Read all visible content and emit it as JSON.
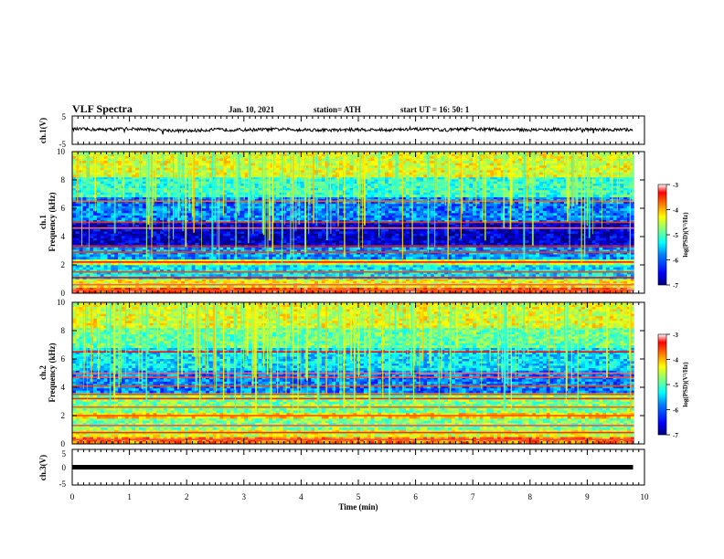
{
  "header": {
    "title": "VLF Spectra",
    "date": "Jan. 10, 2021",
    "station": "station= ATH",
    "start": "start  UT =   16: 50: 1"
  },
  "colors": {
    "colormap": [
      "#00007f",
      "#0000ff",
      "#0080ff",
      "#00ffff",
      "#80ff80",
      "#ffff00",
      "#ff8000",
      "#ff0000",
      "#ffffff"
    ],
    "trace": "#000000",
    "background": "#ffffff"
  },
  "chart_data": [
    {
      "type": "line",
      "panel": "ch1-waveform",
      "ylabel": "ch.1(V)",
      "ylim": [
        -5,
        5
      ],
      "yticks": [
        "5",
        "-5"
      ],
      "xlim": [
        0,
        10
      ],
      "x": [
        0,
        0.5,
        1,
        1.5,
        2,
        2.5,
        3,
        3.5,
        4,
        4.5,
        5,
        5.5,
        6,
        6.5,
        7,
        7.5,
        8,
        8.5,
        9,
        9.5,
        9.8
      ],
      "y": [
        0.4,
        0.2,
        0.5,
        0.1,
        -0.3,
        0.2,
        0.1,
        0.3,
        0.2,
        0.0,
        0.2,
        0.1,
        0.3,
        0.1,
        0.4,
        0.2,
        0.1,
        0.3,
        0.2,
        0.1,
        0.2
      ]
    },
    {
      "type": "heatmap",
      "panel": "ch1-spectrogram",
      "ylabel": "ch.1",
      "ylabel2": "Frequency  (kHz)",
      "xlim": [
        0,
        10
      ],
      "ylim": [
        0,
        10
      ],
      "yticks": [
        "0",
        "2",
        "4",
        "6",
        "8",
        "10"
      ],
      "colorbar": {
        "label": "log(PSD)(V²/Hz)",
        "range": [
          -7,
          -3
        ],
        "ticks": [
          "-3",
          "-4",
          "-5",
          "-6",
          "-7"
        ]
      },
      "bands": [
        {
          "f": [
            0.0,
            0.4
          ],
          "level": -3.6
        },
        {
          "f": [
            0.4,
            1.0
          ],
          "level": -4.5
        },
        {
          "f": [
            1.0,
            2.0
          ],
          "level": -5.6
        },
        {
          "f": [
            2.0,
            2.4
          ],
          "level": -4.7
        },
        {
          "f": [
            2.4,
            3.4
          ],
          "level": -5.9
        },
        {
          "f": [
            3.4,
            5.0
          ],
          "level": -6.7
        },
        {
          "f": [
            5.0,
            6.8
          ],
          "level": -6.0
        },
        {
          "f": [
            6.8,
            8.2
          ],
          "level": -5.3
        },
        {
          "f": [
            8.2,
            10.0
          ],
          "level": -4.6
        }
      ],
      "lines_khz": [
        0.2,
        0.6,
        1.1,
        1.5,
        2.2,
        2.9,
        3.3,
        4.6,
        5.0,
        6.5
      ]
    },
    {
      "type": "heatmap",
      "panel": "ch2-spectrogram",
      "ylabel": "ch.2",
      "ylabel2": "Frequency  (kHz)",
      "xlim": [
        0,
        10
      ],
      "ylim": [
        0,
        10
      ],
      "yticks": [
        "0",
        "2",
        "4",
        "6",
        "8",
        "10"
      ],
      "colorbar": {
        "label": "log(PSD)(V²/Hz)",
        "range": [
          -7,
          -3
        ],
        "ticks": [
          "-3",
          "-4",
          "-5",
          "-6",
          "-7"
        ]
      },
      "bands": [
        {
          "f": [
            0.0,
            0.5
          ],
          "level": -4.0
        },
        {
          "f": [
            0.5,
            1.0
          ],
          "level": -4.6
        },
        {
          "f": [
            1.0,
            1.8
          ],
          "level": -5.0
        },
        {
          "f": [
            1.8,
            2.2
          ],
          "level": -4.4
        },
        {
          "f": [
            2.2,
            3.6
          ],
          "level": -5.0
        },
        {
          "f": [
            3.6,
            5.2
          ],
          "level": -6.0
        },
        {
          "f": [
            5.2,
            6.8
          ],
          "level": -5.6
        },
        {
          "f": [
            6.8,
            8.2
          ],
          "level": -5.1
        },
        {
          "f": [
            8.2,
            10.0
          ],
          "level": -4.6
        }
      ],
      "lines_khz": [
        0.3,
        0.8,
        1.3,
        2.0,
        2.6,
        3.2,
        3.5,
        4.1,
        4.7,
        5.0,
        6.5
      ]
    },
    {
      "type": "line",
      "panel": "ch3-waveform",
      "ylabel": "ch.3(V)",
      "ylim": [
        -5,
        5
      ],
      "yticks": [
        "5",
        "0",
        "-5"
      ],
      "xlim": [
        0,
        10
      ],
      "x": [
        0,
        9.8
      ],
      "y": [
        0,
        0
      ]
    }
  ],
  "xaxis": {
    "label": "Time  (min)",
    "ticks": [
      "0",
      "1",
      "2",
      "3",
      "4",
      "5",
      "6",
      "7",
      "8",
      "9",
      "10"
    ]
  }
}
